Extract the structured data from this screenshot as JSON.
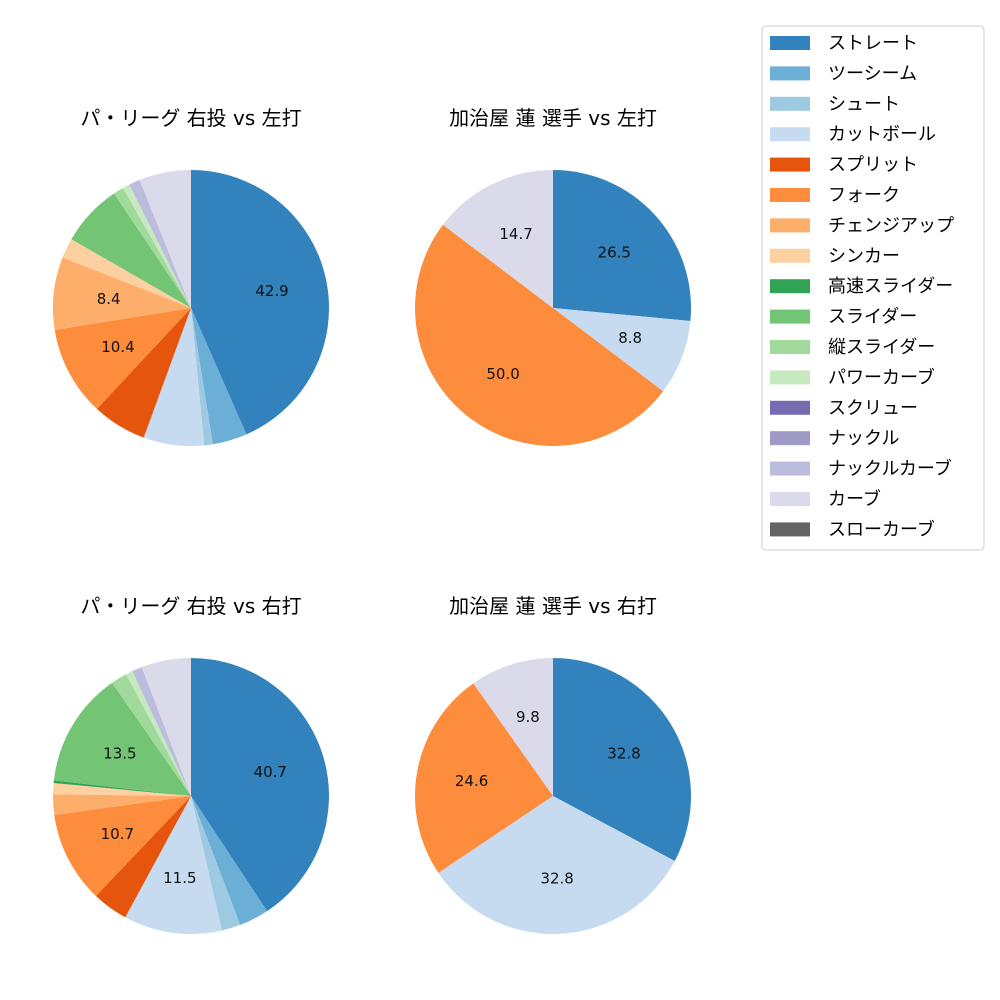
{
  "chart_data": {
    "type": "pie",
    "legend": {
      "placement": "top-right",
      "entries": [
        {
          "name": "ストレート",
          "color": "#3182bd"
        },
        {
          "name": "ツーシーム",
          "color": "#6baed6"
        },
        {
          "name": "シュート",
          "color": "#9ecae1"
        },
        {
          "name": "カットボール",
          "color": "#c6dbef"
        },
        {
          "name": "スプリット",
          "color": "#e6550d"
        },
        {
          "name": "フォーク",
          "color": "#fd8d3c"
        },
        {
          "name": "チェンジアップ",
          "color": "#fdae6b"
        },
        {
          "name": "シンカー",
          "color": "#fdd0a2"
        },
        {
          "name": "高速スライダー",
          "color": "#31a354"
        },
        {
          "name": "スライダー",
          "color": "#74c476"
        },
        {
          "name": "縦スライダー",
          "color": "#a1d99b"
        },
        {
          "name": "パワーカーブ",
          "color": "#c7e9c0"
        },
        {
          "name": "スクリュー",
          "color": "#756bb1"
        },
        {
          "name": "ナックル",
          "color": "#9e9ac8"
        },
        {
          "name": "ナックルカーブ",
          "color": "#bcbddc"
        },
        {
          "name": "カーブ",
          "color": "#dadaeb"
        },
        {
          "name": "スローカーブ",
          "color": "#636363"
        }
      ]
    },
    "pies": [
      {
        "title": "パ・リーグ 右投 vs 左打",
        "slices": [
          {
            "name": "ストレート",
            "value": 42.9,
            "label": "42.9"
          },
          {
            "name": "ツーシーム",
            "value": 4.0,
            "label": ""
          },
          {
            "name": "シュート",
            "value": 1.0,
            "label": ""
          },
          {
            "name": "カットボール",
            "value": 7.0,
            "label": ""
          },
          {
            "name": "スプリット",
            "value": 6.3,
            "label": ""
          },
          {
            "name": "フォーク",
            "value": 10.4,
            "label": "10.4"
          },
          {
            "name": "チェンジアップ",
            "value": 8.4,
            "label": "8.4"
          },
          {
            "name": "シンカー",
            "value": 2.3,
            "label": ""
          },
          {
            "name": "スライダー",
            "value": 7.2,
            "label": ""
          },
          {
            "name": "縦スライダー",
            "value": 1.2,
            "label": ""
          },
          {
            "name": "パワーカーブ",
            "value": 0.8,
            "label": ""
          },
          {
            "name": "ナックルカーブ",
            "value": 1.3,
            "label": ""
          },
          {
            "name": "カーブ",
            "value": 6.0,
            "label": ""
          }
        ]
      },
      {
        "title": "加治屋 蓮 選手 vs 左打",
        "slices": [
          {
            "name": "ストレート",
            "value": 26.5,
            "label": "26.5"
          },
          {
            "name": "カットボール",
            "value": 8.8,
            "label": "8.8"
          },
          {
            "name": "フォーク",
            "value": 50.0,
            "label": "50.0"
          },
          {
            "name": "カーブ",
            "value": 14.7,
            "label": "14.7"
          }
        ]
      },
      {
        "title": "パ・リーグ 右投 vs 右打",
        "slices": [
          {
            "name": "ストレート",
            "value": 40.7,
            "label": "40.7"
          },
          {
            "name": "ツーシーム",
            "value": 3.5,
            "label": ""
          },
          {
            "name": "シュート",
            "value": 2.2,
            "label": ""
          },
          {
            "name": "カットボール",
            "value": 11.5,
            "label": "11.5"
          },
          {
            "name": "スプリット",
            "value": 4.2,
            "label": ""
          },
          {
            "name": "フォーク",
            "value": 10.7,
            "label": "10.7"
          },
          {
            "name": "チェンジアップ",
            "value": 2.4,
            "label": ""
          },
          {
            "name": "シンカー",
            "value": 1.3,
            "label": ""
          },
          {
            "name": "高速スライダー",
            "value": 0.3,
            "label": ""
          },
          {
            "name": "スライダー",
            "value": 13.5,
            "label": "13.5"
          },
          {
            "name": "縦スライダー",
            "value": 1.9,
            "label": ""
          },
          {
            "name": "パワーカーブ",
            "value": 0.8,
            "label": ""
          },
          {
            "name": "ナックルカーブ",
            "value": 1.2,
            "label": ""
          },
          {
            "name": "カーブ",
            "value": 5.8,
            "label": ""
          }
        ]
      },
      {
        "title": "加治屋 蓮 選手 vs 右打",
        "slices": [
          {
            "name": "ストレート",
            "value": 32.8,
            "label": "32.8"
          },
          {
            "name": "カットボール",
            "value": 32.8,
            "label": "32.8"
          },
          {
            "name": "フォーク",
            "value": 24.6,
            "label": "24.6"
          },
          {
            "name": "カーブ",
            "value": 9.8,
            "label": "9.8"
          }
        ]
      }
    ]
  }
}
